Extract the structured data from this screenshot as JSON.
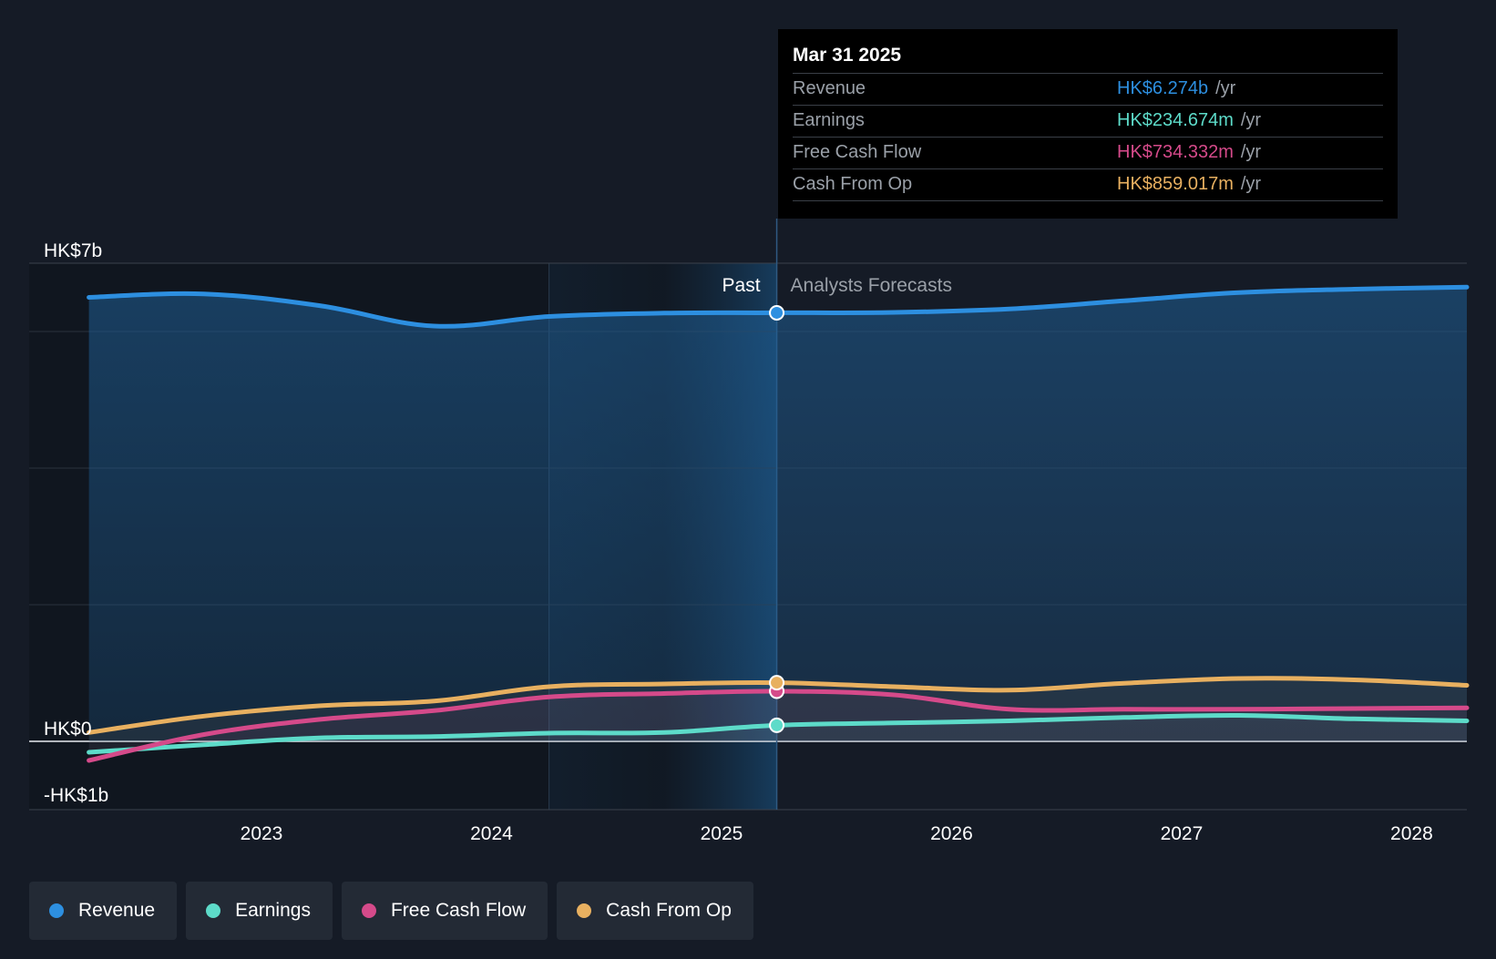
{
  "chart_data": {
    "type": "line",
    "y_axis_labels": [
      "HK$7b",
      "HK$0",
      "-HK$1b"
    ],
    "ylim": [
      -1,
      7
    ],
    "y_unit": "HK$ billions",
    "x_tick_labels": [
      "2023",
      "2024",
      "2025",
      "2026",
      "2027",
      "2028"
    ],
    "x_ticks": [
      2023,
      2024,
      2025,
      2026,
      2027,
      2028
    ],
    "xlim": [
      2021.99,
      2028.24
    ],
    "divider_x": 2025.24,
    "highlight_start_x": 2024.25,
    "past_label": "Past",
    "forecast_label": "Analysts Forecasts",
    "series": [
      {
        "name": "Revenue",
        "color": "#2d8fe0",
        "filled": true,
        "points": [
          [
            2022.25,
            6.5
          ],
          [
            2022.75,
            6.55
          ],
          [
            2023.25,
            6.38
          ],
          [
            2023.75,
            6.08
          ],
          [
            2024.25,
            6.22
          ],
          [
            2024.75,
            6.27
          ],
          [
            2025.24,
            6.274
          ],
          [
            2025.75,
            6.28
          ],
          [
            2026.25,
            6.33
          ],
          [
            2026.75,
            6.45
          ],
          [
            2027.25,
            6.57
          ],
          [
            2027.75,
            6.62
          ],
          [
            2028.24,
            6.65
          ]
        ]
      },
      {
        "name": "Earnings",
        "color": "#5ddbc9",
        "filled": false,
        "points": [
          [
            2022.25,
            -0.16
          ],
          [
            2022.75,
            -0.05
          ],
          [
            2023.25,
            0.05
          ],
          [
            2023.75,
            0.07
          ],
          [
            2024.25,
            0.12
          ],
          [
            2024.75,
            0.13
          ],
          [
            2025.24,
            0.235
          ],
          [
            2025.75,
            0.27
          ],
          [
            2026.25,
            0.3
          ],
          [
            2026.75,
            0.35
          ],
          [
            2027.25,
            0.38
          ],
          [
            2027.75,
            0.33
          ],
          [
            2028.24,
            0.3
          ]
        ]
      },
      {
        "name": "Free Cash Flow",
        "color": "#d54a8a",
        "filled": false,
        "points": [
          [
            2022.25,
            -0.28
          ],
          [
            2022.75,
            0.1
          ],
          [
            2023.25,
            0.32
          ],
          [
            2023.75,
            0.45
          ],
          [
            2024.25,
            0.65
          ],
          [
            2024.75,
            0.7
          ],
          [
            2025.24,
            0.734
          ],
          [
            2025.75,
            0.68
          ],
          [
            2026.25,
            0.47
          ],
          [
            2026.75,
            0.47
          ],
          [
            2027.25,
            0.47
          ],
          [
            2027.75,
            0.48
          ],
          [
            2028.24,
            0.49
          ]
        ]
      },
      {
        "name": "Cash From Op",
        "color": "#e8b060",
        "filled": false,
        "points": [
          [
            2022.25,
            0.13
          ],
          [
            2022.75,
            0.37
          ],
          [
            2023.25,
            0.52
          ],
          [
            2023.75,
            0.59
          ],
          [
            2024.25,
            0.8
          ],
          [
            2024.75,
            0.84
          ],
          [
            2025.24,
            0.859
          ],
          [
            2025.75,
            0.8
          ],
          [
            2026.25,
            0.75
          ],
          [
            2026.75,
            0.85
          ],
          [
            2027.25,
            0.92
          ],
          [
            2027.75,
            0.9
          ],
          [
            2028.24,
            0.82
          ]
        ]
      }
    ],
    "legend_position": "bottom-left",
    "grid": true
  },
  "tooltip": {
    "date": "Mar 31 2025",
    "unit": "/yr",
    "rows": [
      {
        "label": "Revenue",
        "value": "HK$6.274b",
        "color": "#2d8fe0"
      },
      {
        "label": "Earnings",
        "value": "HK$234.674m",
        "color": "#5ddbc9"
      },
      {
        "label": "Free Cash Flow",
        "value": "HK$734.332m",
        "color": "#d54a8a"
      },
      {
        "label": "Cash From Op",
        "value": "HK$859.017m",
        "color": "#e8b060"
      }
    ]
  },
  "legend": [
    {
      "label": "Revenue",
      "color": "#2d8fe0"
    },
    {
      "label": "Earnings",
      "color": "#5ddbc9"
    },
    {
      "label": "Free Cash Flow",
      "color": "#d54a8a"
    },
    {
      "label": "Cash From Op",
      "color": "#e8b060"
    }
  ]
}
